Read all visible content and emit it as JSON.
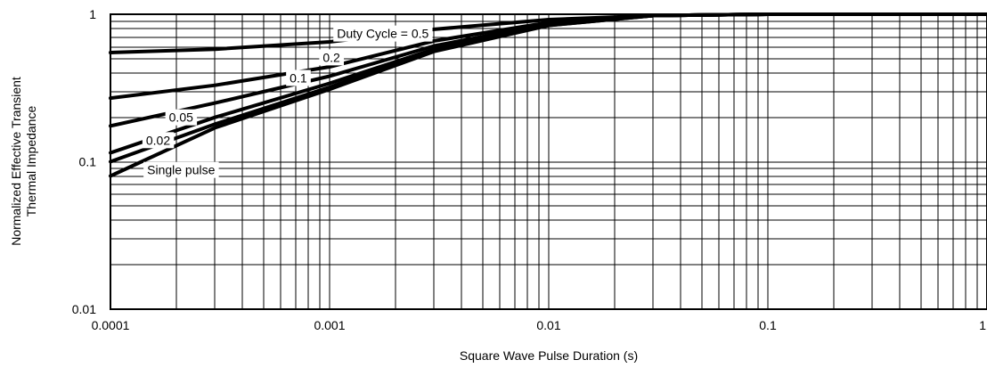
{
  "chart_data": {
    "type": "line",
    "title": "",
    "xlabel": "Square Wave Pulse Duration (s)",
    "ylabel_lines": [
      "Normalized Effective Transient",
      "Thermal Impedance"
    ],
    "xscale": "log",
    "yscale": "log",
    "xlim": [
      0.0001,
      1
    ],
    "ylim": [
      0.01,
      1
    ],
    "x_ticks": [
      0.0001,
      0.001,
      0.01,
      0.1,
      1
    ],
    "x_tick_labels": [
      "0.0001",
      "0.001",
      "0.01",
      "0.1",
      "1"
    ],
    "y_ticks": [
      0.01,
      0.1,
      1
    ],
    "y_tick_labels": [
      "0.01",
      "0.1",
      "1"
    ],
    "grid": true,
    "legend": "none",
    "series": [
      {
        "name": "Duty Cycle = 0.5",
        "label_x": 0.00175,
        "label_y": 0.74,
        "x": [
          0.0001,
          0.0003,
          0.001,
          0.003,
          0.01,
          0.03,
          0.1,
          1
        ],
        "y": [
          0.55,
          0.58,
          0.65,
          0.79,
          0.92,
          0.98,
          1.0,
          1.0
        ]
      },
      {
        "name": "0.2",
        "label_x": 0.00102,
        "label_y": 0.51,
        "x": [
          0.0001,
          0.0003,
          0.001,
          0.003,
          0.01,
          0.03,
          0.1,
          1
        ],
        "y": [
          0.27,
          0.33,
          0.44,
          0.66,
          0.88,
          0.98,
          1.0,
          1.0
        ]
      },
      {
        "name": "0.1",
        "label_x": 0.00072,
        "label_y": 0.37,
        "x": [
          0.0001,
          0.0003,
          0.001,
          0.003,
          0.01,
          0.03,
          0.1,
          1
        ],
        "y": [
          0.175,
          0.25,
          0.38,
          0.61,
          0.86,
          0.98,
          1.0,
          1.0
        ]
      },
      {
        "name": "0.05",
        "label_x": 0.00021,
        "label_y": 0.2,
        "x": [
          0.0001,
          0.0003,
          0.001,
          0.003,
          0.01,
          0.03,
          0.1,
          1
        ],
        "y": [
          0.115,
          0.2,
          0.34,
          0.58,
          0.85,
          0.98,
          1.0,
          1.0
        ]
      },
      {
        "name": "0.02",
        "label_x": 0.000165,
        "label_y": 0.14,
        "x": [
          0.0001,
          0.0003,
          0.001,
          0.003,
          0.01,
          0.03,
          0.1,
          1
        ],
        "y": [
          0.1,
          0.18,
          0.32,
          0.57,
          0.84,
          0.98,
          1.0,
          1.0
        ]
      },
      {
        "name": "Single pulse",
        "label_x": 0.00021,
        "label_y": 0.088,
        "x": [
          0.0001,
          0.0003,
          0.001,
          0.003,
          0.01,
          0.03,
          0.1,
          1
        ],
        "y": [
          0.08,
          0.17,
          0.31,
          0.56,
          0.84,
          0.98,
          1.0,
          1.0
        ]
      }
    ]
  }
}
